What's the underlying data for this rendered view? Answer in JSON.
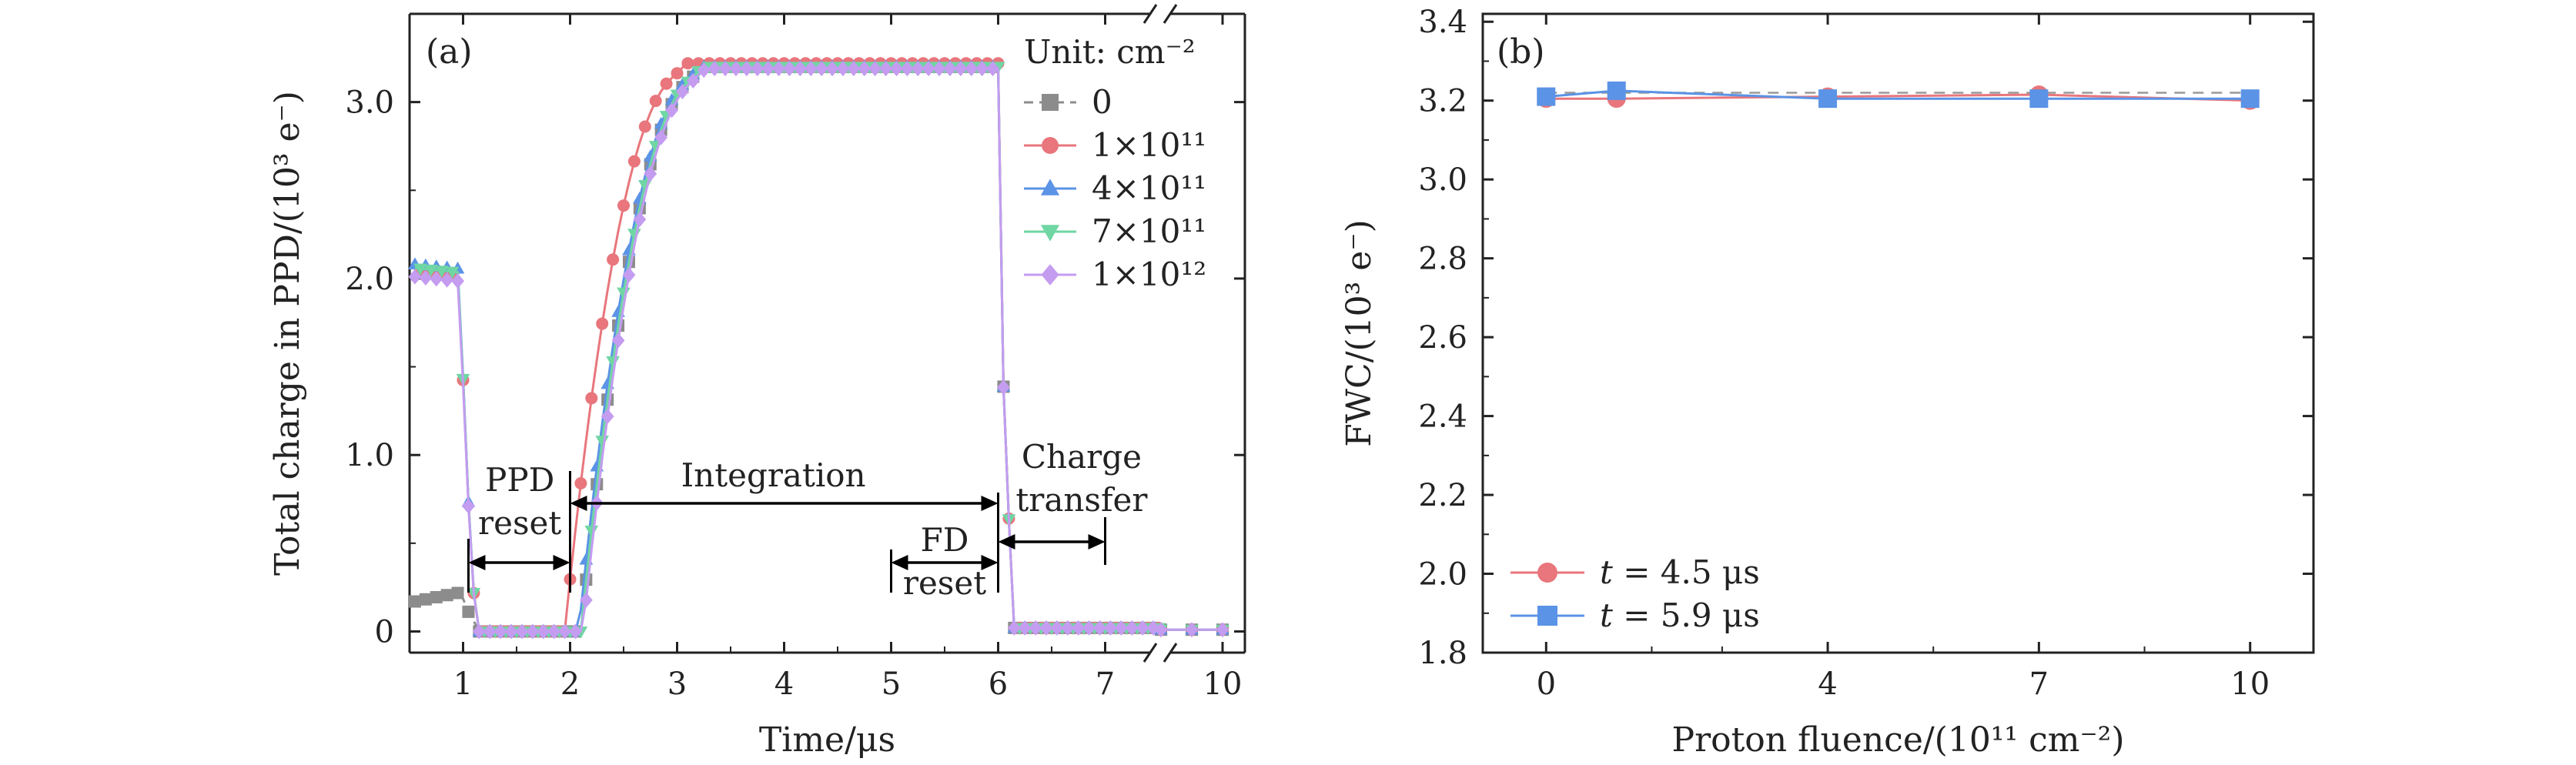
{
  "figure": {
    "panel_a_label": "(a)",
    "panel_b_label": "(b)"
  },
  "chart_data": [
    {
      "type": "line",
      "title": "",
      "panel": "(a)",
      "xlabel": "Time/μs",
      "ylabel": "Total charge in PPD/(10³ e⁻)",
      "xlim": [
        0.5,
        10.2
      ],
      "ylim": [
        -0.12,
        3.5
      ],
      "x_break": [
        7.5,
        9.5
      ],
      "x_ticks": [
        1,
        2,
        3,
        4,
        5,
        6,
        7,
        10
      ],
      "x_tick_labels": [
        "1",
        "2",
        "3",
        "4",
        "5",
        "6",
        "7",
        "10"
      ],
      "y_ticks": [
        0,
        1,
        2,
        3
      ],
      "y_tick_labels": [
        "0",
        "1.0",
        "2.0",
        "3.0"
      ],
      "legend_title": "Unit: cm⁻²",
      "legend_position": "top-right",
      "series": [
        {
          "name": "0",
          "color": "#8c8c8c",
          "marker": "square",
          "dashed": true,
          "pre_level": 0.17,
          "rise_delay": 0.1,
          "plateau": 3.2
        },
        {
          "name": "1×10¹¹",
          "color": "#e8767c",
          "marker": "circle",
          "dashed": false,
          "pre_level": 2.05,
          "rise_delay": -0.05,
          "plateau": 3.22
        },
        {
          "name": "4×10¹¹",
          "color": "#5b93e6",
          "marker": "triangle-up",
          "dashed": false,
          "pre_level": 2.08,
          "rise_delay": 0.08,
          "plateau": 3.2
        },
        {
          "name": "7×10¹¹",
          "color": "#6fd6a4",
          "marker": "triangle-down",
          "dashed": false,
          "pre_level": 2.06,
          "rise_delay": 0.1,
          "plateau": 3.2
        },
        {
          "name": "1×10¹²",
          "color": "#c49cf0",
          "marker": "diamond",
          "dashed": false,
          "pre_level": 2.01,
          "rise_delay": 0.12,
          "plateau": 3.19
        }
      ],
      "annotations": {
        "ppd_reset_line1": "PPD",
        "ppd_reset_line2": "reset",
        "integration": "Integration",
        "charge_transfer_line1": "Charge",
        "charge_transfer_line2": "transfer",
        "fd_reset_line1": "FD",
        "fd_reset_line2": "reset"
      }
    },
    {
      "type": "line",
      "title": "",
      "panel": "(b)",
      "xlabel": "Proton fluence/(10¹¹ cm⁻²)",
      "ylabel": "FWC/(10³ e⁻)",
      "xlim": [
        -0.9,
        10.9
      ],
      "ylim": [
        1.8,
        3.42
      ],
      "x_ticks": [
        0,
        4,
        7,
        10
      ],
      "x_tick_labels": [
        "0",
        "4",
        "7",
        "10"
      ],
      "y_ticks": [
        1.8,
        2.0,
        2.2,
        2.4,
        2.6,
        2.8,
        3.0,
        3.2,
        3.4
      ],
      "y_tick_labels": [
        "1.8",
        "2.0",
        "2.2",
        "2.4",
        "2.6",
        "2.8",
        "3.0",
        "3.2",
        "3.4"
      ],
      "legend_position": "bottom-left",
      "series": [
        {
          "name_var": "t",
          "name_value": " = 4.5 μs",
          "color": "#e8767c",
          "marker": "circle",
          "x": [
            0,
            1,
            4,
            7,
            10
          ],
          "y": [
            3.205,
            3.205,
            3.21,
            3.215,
            3.2
          ]
        },
        {
          "name_var": "t",
          "name_value": " = 5.9 μs",
          "color": "#5b93e6",
          "marker": "square",
          "x": [
            0,
            1,
            4,
            7,
            10
          ],
          "y": [
            3.21,
            3.225,
            3.205,
            3.205,
            3.205
          ]
        }
      ],
      "reference_line": {
        "y": 3.22,
        "dashed": true
      }
    }
  ]
}
